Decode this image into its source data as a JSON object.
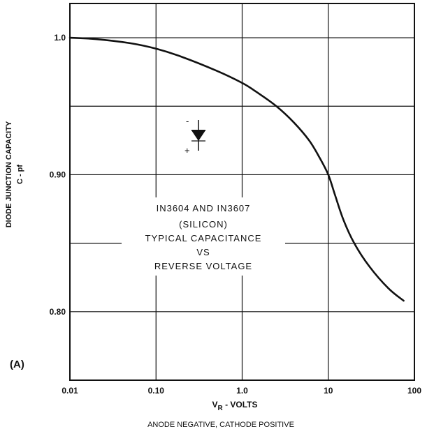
{
  "chart_data": {
    "type": "line",
    "x_scale": "log",
    "y_scale": "linear",
    "xlim": [
      0.01,
      100
    ],
    "ylim": [
      0.75,
      1.025
    ],
    "grid": true,
    "x_ticks": [
      0.01,
      0.1,
      1,
      10,
      100
    ],
    "x_tick_labels": [
      "0.01",
      "0.10",
      "1.0",
      "10",
      "100"
    ],
    "y_ticks": [
      0.8,
      0.9,
      1.0
    ],
    "y_tick_labels": [
      "0.80",
      "0.90",
      "1.0"
    ],
    "y_gridlines": [
      0.8,
      0.85,
      0.9,
      0.95,
      1.0
    ],
    "ylabel_line1": "DIODE JUNCTION CAPACITY",
    "ylabel_line2": "C - pf",
    "xlabel_main": "V",
    "xlabel_sub": "R",
    "xlabel_rest": " - VOLTS",
    "xlabel_secondary": "ANODE NEGATIVE, CATHODE POSITIVE",
    "panel_label": "(A)",
    "annotation_lines": [
      "IN3604 AND IN3607",
      "(SILICON)",
      "TYPICAL CAPACITANCE",
      "VS",
      "REVERSE VOLTAGE"
    ],
    "symbol_minus": "-",
    "symbol_plus": "+",
    "series": [
      {
        "x": [
          0.01,
          0.02,
          0.05,
          0.1,
          0.2,
          0.5,
          1.0,
          1.5,
          2.5,
          4,
          6,
          8,
          10,
          12,
          15,
          20,
          30,
          50,
          75
        ],
        "y": [
          1.0,
          0.999,
          0.996,
          0.992,
          0.986,
          0.976,
          0.967,
          0.96,
          0.95,
          0.938,
          0.925,
          0.912,
          0.9,
          0.885,
          0.867,
          0.85,
          0.833,
          0.817,
          0.808
        ]
      }
    ]
  }
}
